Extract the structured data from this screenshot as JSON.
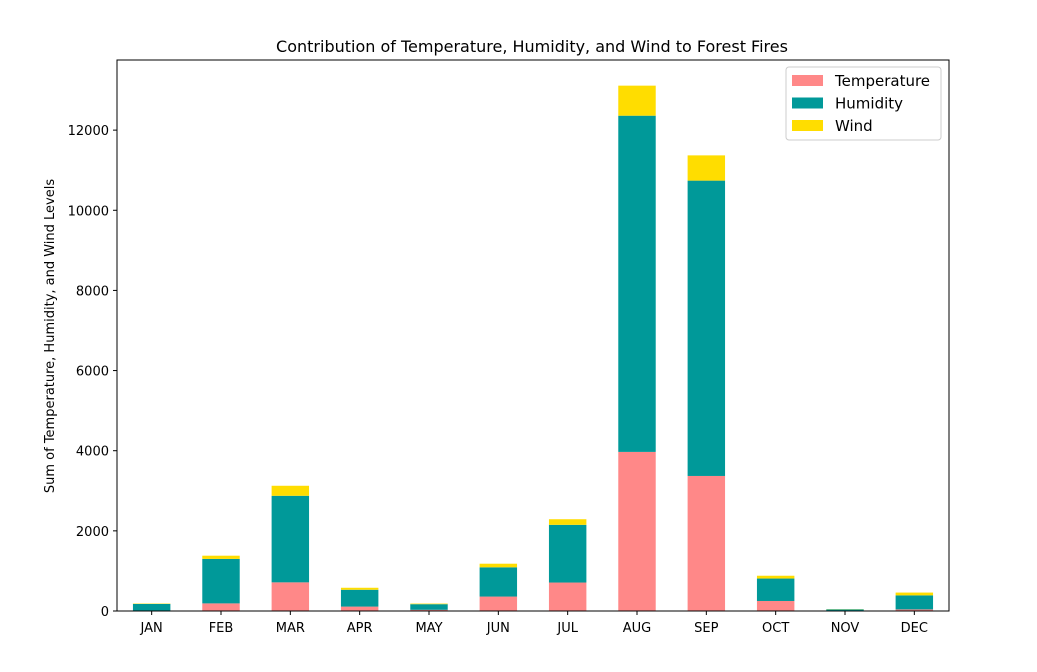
{
  "chart_data": {
    "type": "bar",
    "stacked": true,
    "title": "Contribution of Temperature, Humidity, and Wind to Forest Fires",
    "xlabel": "",
    "ylabel": "Sum of Temperature, Humidity, and Wind Levels",
    "categories": [
      "JAN",
      "FEB",
      "MAR",
      "APR",
      "MAY",
      "JUN",
      "JUL",
      "AUG",
      "SEP",
      "OCT",
      "NOV",
      "DEC"
    ],
    "series": [
      {
        "name": "Temperature",
        "color": "#ff8888",
        "values": [
          12,
          190,
          715,
          110,
          30,
          360,
          710,
          3970,
          3370,
          250,
          11,
          40
        ]
      },
      {
        "name": "Humidity",
        "color": "#009999",
        "values": [
          165,
          1110,
          2160,
          420,
          140,
          730,
          1440,
          8390,
          7370,
          560,
          30,
          350
        ]
      },
      {
        "name": "Wind",
        "color": "#ffdd00",
        "values": [
          10,
          80,
          250,
          50,
          15,
          90,
          140,
          750,
          630,
          70,
          5,
          70
        ]
      }
    ],
    "yticks": [
      0,
      2000,
      4000,
      6000,
      8000,
      10000,
      12000
    ],
    "ylim": [
      0,
      13750
    ],
    "legend_position": "top-right",
    "grid": false
  }
}
